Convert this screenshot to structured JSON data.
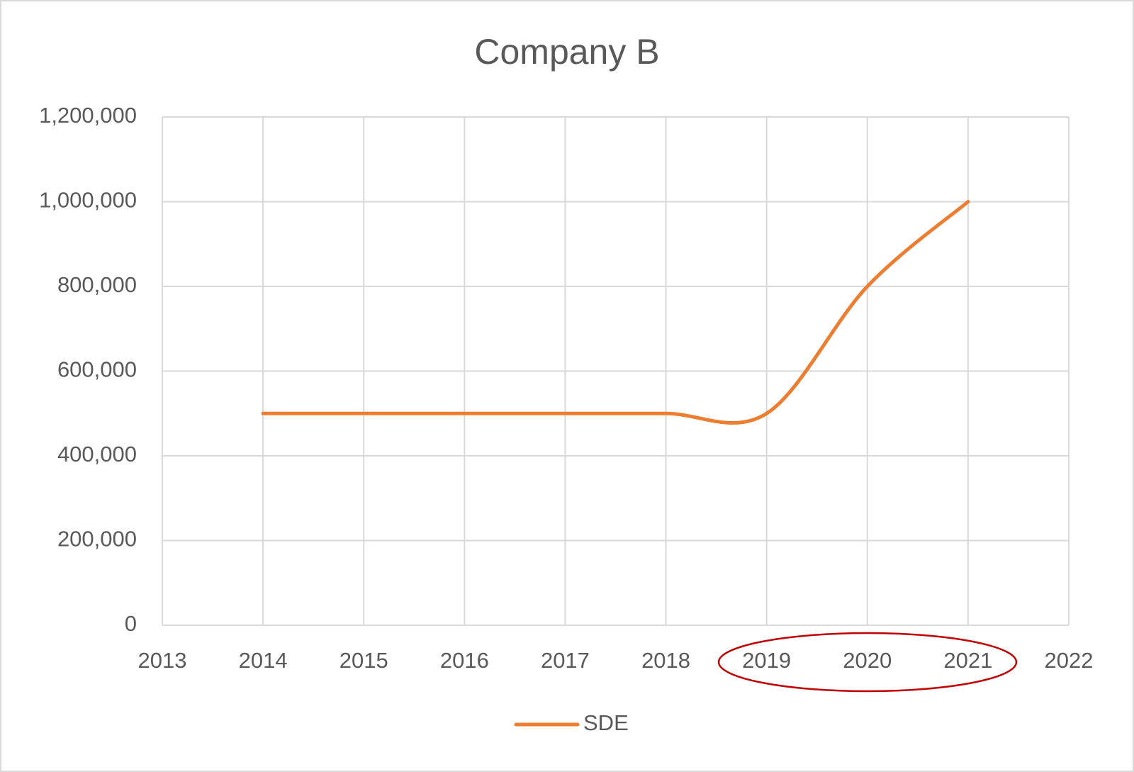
{
  "chart_data": {
    "type": "line",
    "title": "Company B",
    "x": [
      2014,
      2015,
      2016,
      2017,
      2018,
      2019,
      2020,
      2021
    ],
    "series": [
      {
        "name": "SDE",
        "color": "#ed7d31",
        "values": [
          500000,
          500000,
          500000,
          500000,
          500000,
          500000,
          800000,
          1000000
        ]
      }
    ],
    "xlim": [
      2013,
      2022
    ],
    "xticks": [
      2013,
      2014,
      2015,
      2016,
      2017,
      2018,
      2019,
      2020,
      2021,
      2022
    ],
    "ylim": [
      0,
      1200000
    ],
    "yticks": [
      0,
      {
        "value": 200000,
        "label": "200,000"
      },
      {
        "value": 400000,
        "label": "400,000"
      },
      {
        "value": 600000,
        "label": "600,000"
      },
      {
        "value": 800000,
        "label": "800,000"
      },
      {
        "value": 1000000,
        "label": "1,000,000"
      },
      {
        "value": 1200000,
        "label": "1,200,000"
      }
    ],
    "grid": true,
    "smooth": true,
    "legend": "bottom"
  }
}
